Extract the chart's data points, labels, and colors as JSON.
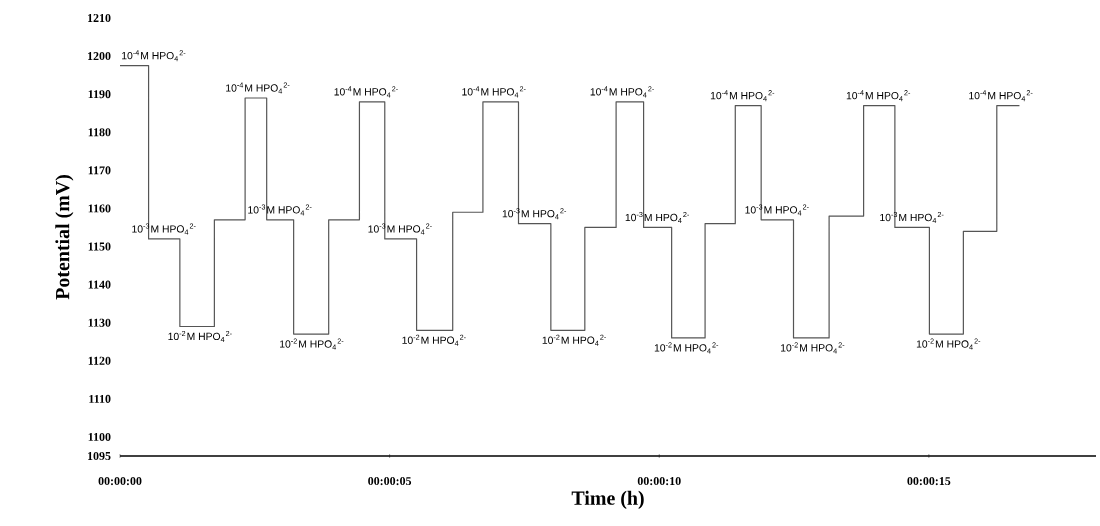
{
  "chart_data": {
    "type": "step",
    "xlabel": "Time (h)",
    "ylabel": "Potential (mV)",
    "color": "#555555",
    "x": [
      0,
      0.53,
      1.11,
      1.75,
      2.32,
      2.72,
      3.22,
      3.87,
      4.44,
      4.91,
      5.5,
      6.17,
      6.73,
      7.39,
      7.99,
      8.62,
      9.2,
      9.71,
      10.23,
      10.85,
      11.41,
      11.89,
      12.49,
      13.15,
      13.79,
      14.37,
      15.01,
      15.64,
      16.26,
      16.68
    ],
    "values": [
      1197.5,
      1152,
      1129,
      1157,
      1189,
      1157,
      1127,
      1157,
      1188,
      1152,
      1128,
      1159,
      1188,
      1156,
      1128,
      1155,
      1188,
      1155,
      1126,
      1156,
      1187,
      1157,
      1126,
      1158,
      1187,
      1155,
      1127,
      1154,
      1187,
      1187
    ],
    "xlim": [
      0,
      18.1
    ],
    "ylim": [
      1095,
      1210
    ],
    "xticks": [
      {
        "value": 0,
        "label": "00:00:00"
      },
      {
        "value": 5,
        "label": "00:00:05"
      },
      {
        "value": 10,
        "label": "00:00:10"
      },
      {
        "value": 15,
        "label": "00:00:15"
      }
    ],
    "yticks": [
      1095,
      1100,
      1110,
      1120,
      1130,
      1140,
      1150,
      1160,
      1170,
      1180,
      1190,
      1200,
      1210
    ],
    "annotations": [
      {
        "text": "10$^{-4}$M HPO$_{4}$$^{2-}$",
        "x": 0.63,
        "y": 1197.5
      },
      {
        "text": "10$^{-3}$M HPO$_{4}$$^{2-}$",
        "x": 0.82,
        "y": 1152
      },
      {
        "text": "10$^{-2}$M HPO$_{4}$$^{2-}$",
        "x": 1.49,
        "y": 1129
      },
      {
        "text": "10$^{-4}$M HPO$_{4}$$^{2-}$",
        "x": 2.56,
        "y": 1189
      },
      {
        "text": "10$^{-3}$M HPO$_{4}$$^{2-}$",
        "x": 2.97,
        "y": 1157
      },
      {
        "text": "10$^{-2}$M HPO$_{4}$$^{2-}$",
        "x": 3.56,
        "y": 1127
      },
      {
        "text": "10$^{-4}$M HPO$_{4}$$^{2-}$",
        "x": 4.57,
        "y": 1188
      },
      {
        "text": "10$^{-3}$M HPO$_{4}$$^{2-}$",
        "x": 5.2,
        "y": 1152
      },
      {
        "text": "10$^{-2}$M HPO$_{4}$$^{2-}$",
        "x": 5.83,
        "y": 1128
      },
      {
        "text": "10$^{-4}$M HPO$_{4}$$^{2-}$",
        "x": 6.94,
        "y": 1188
      },
      {
        "text": "10$^{-3}$M HPO$_{4}$$^{2-}$",
        "x": 7.69,
        "y": 1156
      },
      {
        "text": "10$^{-2}$M HPO$_{4}$$^{2-}$",
        "x": 8.43,
        "y": 1128
      },
      {
        "text": "10$^{-4}$M HPO$_{4}$$^{2-}$",
        "x": 9.32,
        "y": 1188
      },
      {
        "text": "10$^{-3}$M HPO$_{4}$$^{2-}$",
        "x": 9.97,
        "y": 1155
      },
      {
        "text": "10$^{-2}$M HPO$_{4}$$^{2-}$",
        "x": 10.51,
        "y": 1126
      },
      {
        "text": "10$^{-4}$M HPO$_{4}$$^{2-}$",
        "x": 11.55,
        "y": 1187
      },
      {
        "text": "10$^{-3}$M HPO$_{4}$$^{2-}$",
        "x": 12.19,
        "y": 1157
      },
      {
        "text": "10$^{-2}$M HPO$_{4}$$^{2-}$",
        "x": 12.85,
        "y": 1126
      },
      {
        "text": "10$^{-4}$M HPO$_{4}$$^{2-}$",
        "x": 14.07,
        "y": 1187
      },
      {
        "text": "10$^{-3}$M HPO$_{4}$$^{2-}$",
        "x": 14.69,
        "y": 1155
      },
      {
        "text": "10$^{-2}$M HPO$_{4}$$^{2-}$",
        "x": 15.37,
        "y": 1127
      },
      {
        "text": "10$^{-4}$M HPO$_{4}$$^{2-}$",
        "x": 16.34,
        "y": 1187
      }
    ]
  }
}
